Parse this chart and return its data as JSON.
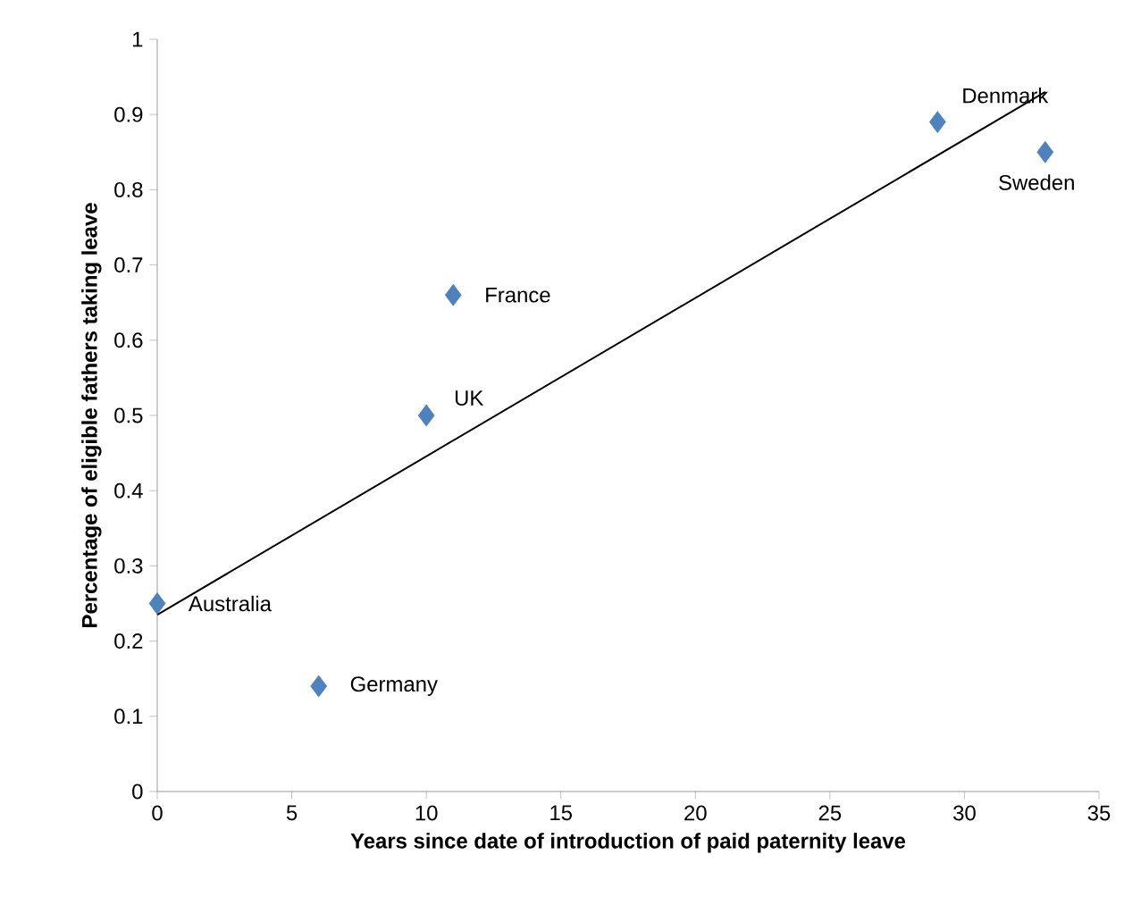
{
  "chart_data": {
    "type": "scatter",
    "xlabel": "Years since date of introduction of paid paternity leave",
    "ylabel": "Percentage of eligible fathers taking leave",
    "series": [
      {
        "color": "#4f81bd",
        "marker": "diamond",
        "x": [
          0,
          6,
          10,
          11,
          29,
          33
        ],
        "values": [
          0.25,
          0.14,
          0.5,
          0.66,
          0.89,
          0.85
        ]
      },
      {
        "type": "line",
        "color": "#000000",
        "marker": "none",
        "x": [
          0,
          33
        ],
        "values": [
          0.235,
          0.93
        ]
      }
    ],
    "annotations": [
      {
        "text": "Australia",
        "x": 0,
        "y": 0.25
      },
      {
        "text": "Germany",
        "x": 6,
        "y": 0.14
      },
      {
        "text": "UK",
        "x": 10,
        "y": 0.5
      },
      {
        "text": "France",
        "x": 11,
        "y": 0.66
      },
      {
        "text": "Denmark",
        "x": 29,
        "y": 0.89
      },
      {
        "text": "Sweden",
        "x": 33,
        "y": 0.85
      }
    ],
    "xlim": [
      0,
      35
    ],
    "ylim": [
      0,
      1
    ],
    "xticks": [
      0,
      5,
      10,
      15,
      20,
      25,
      30,
      35
    ],
    "yticks": [
      0,
      0.1,
      0.2,
      0.3,
      0.4,
      0.5,
      0.6,
      0.7,
      0.8,
      0.9,
      1
    ],
    "grid": false
  }
}
